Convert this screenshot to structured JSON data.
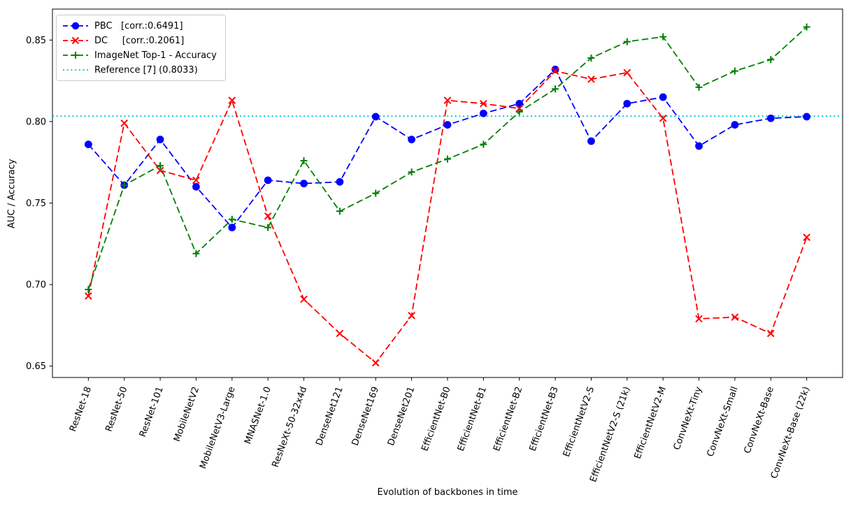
{
  "chart_data": {
    "type": "line",
    "title": "",
    "xlabel": "Evolution of backbones in time",
    "ylabel": "AUC / Accuracy",
    "ylim": [
      0.643,
      0.869
    ],
    "yticks": [
      0.65,
      0.7,
      0.75,
      0.8,
      0.85
    ],
    "grid": false,
    "legend_position": "upper left",
    "background_color": "#ffffff",
    "axis_color": "#000000",
    "categories": [
      "ResNet-18",
      "ResNet-50",
      "ResNet-101",
      "MobileNetV2",
      "MobileNetV3-Large",
      "MNASNet-1.0",
      "ResNeXt-50-32x4d",
      "DenseNet121",
      "DenseNet169",
      "DenseNet201",
      "EfficientNet-B0",
      "EfficientNet-B1",
      "EfficientNet-B2",
      "EfficientNet-B3",
      "EfficientNetV2-S",
      "EfficientNetV2-S (21k)",
      "EfficientNetV2-M",
      "ConvNeXt-Tiny",
      "ConvNeXt-Small",
      "ConvNeXt-Base",
      "ConvNeXt-Base (22k)"
    ],
    "series": [
      {
        "key": "pbc",
        "name": "PBC   [corr.:0.6491]",
        "color": "#0000ff",
        "marker": "circle",
        "linestyle": "dashed",
        "values": [
          0.786,
          0.761,
          0.789,
          0.76,
          0.735,
          0.764,
          0.762,
          0.763,
          0.803,
          0.789,
          0.798,
          0.805,
          0.811,
          0.832,
          0.788,
          0.811,
          0.815,
          0.785,
          0.798,
          0.802,
          0.803
        ]
      },
      {
        "key": "dc",
        "name": "DC     [corr.:0.2061]",
        "color": "#ff0000",
        "marker": "x",
        "linestyle": "dashed",
        "values": [
          0.693,
          0.799,
          0.77,
          0.764,
          0.813,
          0.742,
          0.691,
          0.67,
          0.652,
          0.681,
          0.813,
          0.811,
          0.808,
          0.831,
          0.826,
          0.83,
          0.802,
          0.679,
          0.68,
          0.67,
          0.729
        ]
      },
      {
        "key": "imagenet",
        "name": "ImageNet Top-1 - Accuracy",
        "color": "#008000",
        "marker": "plus",
        "linestyle": "dashed",
        "values": [
          0.697,
          0.761,
          0.773,
          0.719,
          0.74,
          0.735,
          0.776,
          0.745,
          0.756,
          0.769,
          0.777,
          0.786,
          0.806,
          0.82,
          0.839,
          0.849,
          0.852,
          0.821,
          0.831,
          0.838,
          0.858
        ]
      }
    ],
    "reference": {
      "key": "reference",
      "name": "Reference [7] (0.8033)",
      "value": 0.8033,
      "color": "#00bfcf",
      "linestyle": "dotted"
    }
  }
}
